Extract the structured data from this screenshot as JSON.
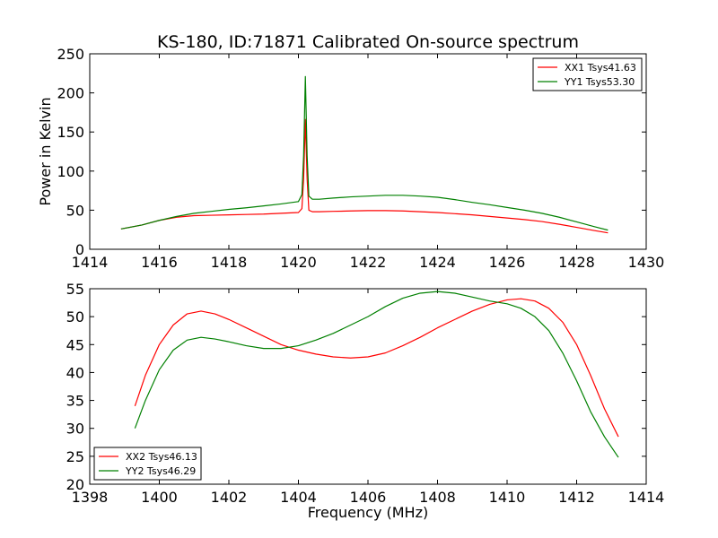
{
  "chart_data": [
    {
      "type": "line",
      "title": "KS-180, ID:71871 Calibrated On-source spectrum",
      "xlabel": "",
      "ylabel": "Power in Kelvin",
      "xlim": [
        1414,
        1430
      ],
      "ylim": [
        0,
        250
      ],
      "xticks": [
        1414,
        1416,
        1418,
        1420,
        1422,
        1424,
        1426,
        1428,
        1430
      ],
      "yticks": [
        0,
        50,
        100,
        150,
        200,
        250
      ],
      "grid": false,
      "legend": "top-right",
      "series": [
        {
          "name": "XX1 Tsys41.63",
          "color": "#ff0000",
          "x": [
            1414.9,
            1415.5,
            1416.0,
            1416.5,
            1417.0,
            1417.5,
            1418.0,
            1418.5,
            1419.0,
            1419.5,
            1420.0,
            1420.1,
            1420.15,
            1420.2,
            1420.25,
            1420.3,
            1420.4,
            1420.6,
            1421.0,
            1421.5,
            1422.0,
            1422.5,
            1423.0,
            1423.5,
            1424.0,
            1424.5,
            1425.0,
            1425.5,
            1426.0,
            1426.5,
            1427.0,
            1427.5,
            1428.0,
            1428.5,
            1428.9
          ],
          "y": [
            26,
            31,
            37,
            41,
            43,
            43.5,
            44,
            44.5,
            45,
            46,
            47,
            52,
            90,
            166,
            90,
            50,
            48,
            48,
            48.5,
            49,
            49.5,
            49.5,
            49,
            48,
            47,
            45.5,
            44,
            42,
            40,
            38,
            35.5,
            32,
            28,
            24,
            21
          ]
        },
        {
          "name": "YY1 Tsys53.30",
          "color": "#008000",
          "x": [
            1414.9,
            1415.5,
            1416.0,
            1416.5,
            1417.0,
            1417.5,
            1418.0,
            1418.5,
            1419.0,
            1419.5,
            1420.0,
            1420.1,
            1420.15,
            1420.2,
            1420.25,
            1420.3,
            1420.4,
            1420.6,
            1421.0,
            1421.5,
            1422.0,
            1422.5,
            1423.0,
            1423.5,
            1424.0,
            1424.5,
            1425.0,
            1425.5,
            1426.0,
            1426.5,
            1427.0,
            1427.5,
            1428.0,
            1428.5,
            1428.9
          ],
          "y": [
            26,
            31,
            37,
            42,
            46,
            48.5,
            51,
            53,
            55.5,
            58,
            61,
            70,
            120,
            221,
            120,
            68,
            64,
            64,
            65.5,
            67,
            68,
            69,
            69,
            68,
            66.5,
            63.5,
            60,
            57,
            53.5,
            50,
            46,
            41,
            35,
            29,
            24.5
          ]
        }
      ]
    },
    {
      "type": "line",
      "title": "",
      "xlabel": "Frequency (MHz)",
      "ylabel": "",
      "xlim": [
        1398,
        1414
      ],
      "ylim": [
        20,
        55
      ],
      "xticks": [
        1398,
        1400,
        1402,
        1404,
        1406,
        1408,
        1410,
        1412,
        1414
      ],
      "yticks": [
        20,
        25,
        30,
        35,
        40,
        45,
        50,
        55
      ],
      "grid": false,
      "legend": "bottom-left",
      "series": [
        {
          "name": "XX2 Tsys46.13",
          "color": "#ff0000",
          "x": [
            1399.3,
            1399.6,
            1400.0,
            1400.4,
            1400.8,
            1401.2,
            1401.6,
            1402.0,
            1402.5,
            1403.0,
            1403.5,
            1404.0,
            1404.5,
            1405.0,
            1405.5,
            1406.0,
            1406.5,
            1407.0,
            1407.5,
            1408.0,
            1408.5,
            1409.0,
            1409.5,
            1410.0,
            1410.4,
            1410.8,
            1411.2,
            1411.6,
            1412.0,
            1412.4,
            1412.8,
            1413.2
          ],
          "y": [
            34,
            39.5,
            45,
            48.5,
            50.5,
            51,
            50.5,
            49.5,
            48,
            46.5,
            45,
            44,
            43.3,
            42.8,
            42.6,
            42.8,
            43.5,
            44.8,
            46.3,
            48,
            49.5,
            51,
            52.2,
            53,
            53.2,
            52.8,
            51.5,
            49,
            45,
            39.5,
            33.5,
            28.5
          ]
        },
        {
          "name": "YY2 Tsys46.29",
          "color": "#008000",
          "x": [
            1399.3,
            1399.6,
            1400.0,
            1400.4,
            1400.8,
            1401.2,
            1401.6,
            1402.0,
            1402.5,
            1403.0,
            1403.5,
            1404.0,
            1404.5,
            1405.0,
            1405.5,
            1406.0,
            1406.5,
            1407.0,
            1407.5,
            1408.0,
            1408.5,
            1409.0,
            1409.5,
            1410.0,
            1410.4,
            1410.8,
            1411.2,
            1411.6,
            1412.0,
            1412.4,
            1412.8,
            1413.2
          ],
          "y": [
            30,
            35,
            40.5,
            44,
            45.8,
            46.3,
            46,
            45.5,
            44.8,
            44.3,
            44.3,
            44.8,
            45.8,
            47,
            48.5,
            50,
            51.8,
            53.3,
            54.2,
            54.5,
            54.2,
            53.5,
            52.8,
            52.3,
            51.5,
            50,
            47.5,
            43.5,
            38.5,
            33,
            28.5,
            24.8
          ]
        }
      ]
    }
  ]
}
